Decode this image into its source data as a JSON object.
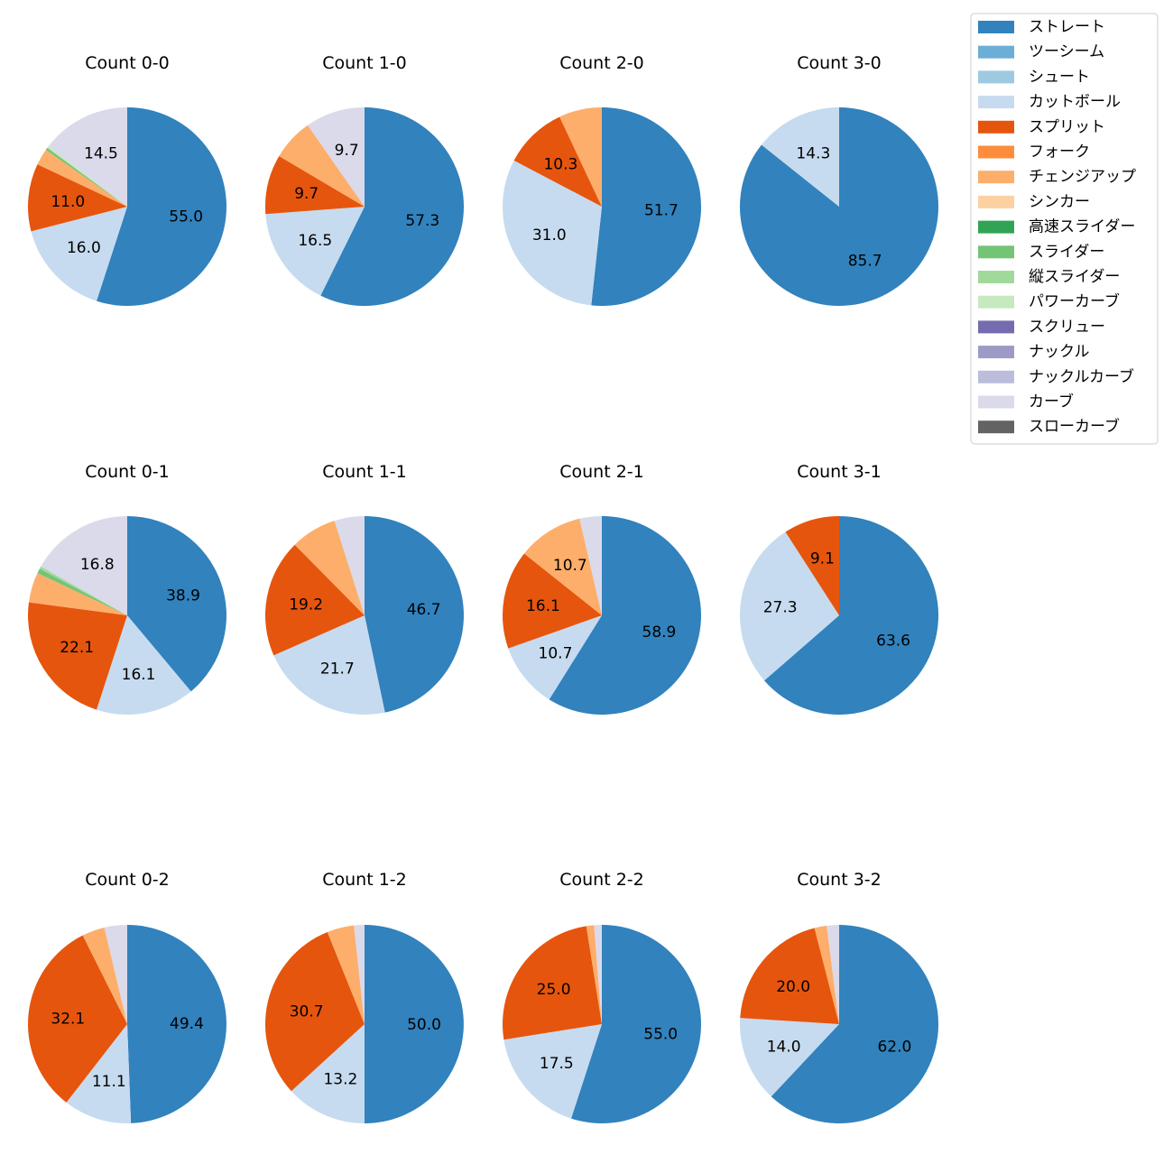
{
  "colors": {
    "ストレート": "#3182bd",
    "ツーシーム": "#6baed6",
    "シュート": "#9ecae1",
    "カットボール": "#c6dbef",
    "スプリット": "#e6550d",
    "フォーク": "#fd8d3c",
    "チェンジアップ": "#fdae6b",
    "シンカー": "#fdd0a2",
    "高速スライダー": "#31a354",
    "スライダー": "#74c476",
    "縦スライダー": "#a1d99b",
    "パワーカーブ": "#c7e9c0",
    "スクリュー": "#756bb1",
    "ナックル": "#9e9ac8",
    "ナックルカーブ": "#bcbddc",
    "カーブ": "#dadaeb",
    "スローカーブ": "#636363"
  },
  "legend": [
    "ストレート",
    "ツーシーム",
    "シュート",
    "カットボール",
    "スプリット",
    "フォーク",
    "チェンジアップ",
    "シンカー",
    "高速スライダー",
    "スライダー",
    "縦スライダー",
    "パワーカーブ",
    "スクリュー",
    "ナックル",
    "ナックルカーブ",
    "カーブ",
    "スローカーブ"
  ],
  "chart_data": [
    {
      "type": "pie",
      "title": "Count 0-0",
      "slices": [
        {
          "label": "ストレート",
          "value": 55.0,
          "shown": "55.0"
        },
        {
          "label": "カットボール",
          "value": 16.0,
          "shown": "16.0"
        },
        {
          "label": "スプリット",
          "value": 11.0,
          "shown": "11.0"
        },
        {
          "label": "チェンジアップ",
          "value": 2.7,
          "shown": ""
        },
        {
          "label": "スライダー",
          "value": 0.4,
          "shown": ""
        },
        {
          "label": "パワーカーブ",
          "value": 0.4,
          "shown": ""
        },
        {
          "label": "カーブ",
          "value": 14.5,
          "shown": "14.5"
        }
      ]
    },
    {
      "type": "pie",
      "title": "Count 1-0",
      "slices": [
        {
          "label": "ストレート",
          "value": 57.3,
          "shown": "57.3"
        },
        {
          "label": "カットボール",
          "value": 16.5,
          "shown": "16.5"
        },
        {
          "label": "スプリット",
          "value": 9.7,
          "shown": "9.7"
        },
        {
          "label": "チェンジアップ",
          "value": 6.8,
          "shown": ""
        },
        {
          "label": "カーブ",
          "value": 9.7,
          "shown": "9.7"
        }
      ]
    },
    {
      "type": "pie",
      "title": "Count 2-0",
      "slices": [
        {
          "label": "ストレート",
          "value": 51.7,
          "shown": "51.7"
        },
        {
          "label": "カットボール",
          "value": 31.0,
          "shown": "31.0"
        },
        {
          "label": "スプリット",
          "value": 10.3,
          "shown": "10.3"
        },
        {
          "label": "チェンジアップ",
          "value": 7.0,
          "shown": ""
        }
      ]
    },
    {
      "type": "pie",
      "title": "Count 3-0",
      "slices": [
        {
          "label": "ストレート",
          "value": 85.7,
          "shown": "85.7"
        },
        {
          "label": "カットボール",
          "value": 14.3,
          "shown": "14.3"
        }
      ]
    },
    {
      "type": "pie",
      "title": "Count 0-1",
      "slices": [
        {
          "label": "ストレート",
          "value": 38.9,
          "shown": "38.9"
        },
        {
          "label": "カットボール",
          "value": 16.1,
          "shown": "16.1"
        },
        {
          "label": "スプリット",
          "value": 22.1,
          "shown": "22.1"
        },
        {
          "label": "チェンジアップ",
          "value": 4.9,
          "shown": ""
        },
        {
          "label": "スライダー",
          "value": 0.8,
          "shown": ""
        },
        {
          "label": "縦スライダー",
          "value": 0.4,
          "shown": ""
        },
        {
          "label": "カーブ",
          "value": 16.8,
          "shown": "16.8"
        }
      ]
    },
    {
      "type": "pie",
      "title": "Count 1-1",
      "slices": [
        {
          "label": "ストレート",
          "value": 46.7,
          "shown": "46.7"
        },
        {
          "label": "カットボール",
          "value": 21.7,
          "shown": "21.7"
        },
        {
          "label": "スプリット",
          "value": 19.2,
          "shown": "19.2"
        },
        {
          "label": "チェンジアップ",
          "value": 7.5,
          "shown": ""
        },
        {
          "label": "カーブ",
          "value": 4.9,
          "shown": ""
        }
      ]
    },
    {
      "type": "pie",
      "title": "Count 2-1",
      "slices": [
        {
          "label": "ストレート",
          "value": 58.9,
          "shown": "58.9"
        },
        {
          "label": "カットボール",
          "value": 10.7,
          "shown": "10.7"
        },
        {
          "label": "スプリット",
          "value": 16.1,
          "shown": "16.1"
        },
        {
          "label": "チェンジアップ",
          "value": 10.7,
          "shown": "10.7"
        },
        {
          "label": "カーブ",
          "value": 3.6,
          "shown": ""
        }
      ]
    },
    {
      "type": "pie",
      "title": "Count 3-1",
      "slices": [
        {
          "label": "ストレート",
          "value": 63.6,
          "shown": "63.6"
        },
        {
          "label": "カットボール",
          "value": 27.3,
          "shown": "27.3"
        },
        {
          "label": "スプリット",
          "value": 9.1,
          "shown": "9.1"
        }
      ]
    },
    {
      "type": "pie",
      "title": "Count 0-2",
      "slices": [
        {
          "label": "ストレート",
          "value": 49.4,
          "shown": "49.4"
        },
        {
          "label": "カットボール",
          "value": 11.1,
          "shown": "11.1"
        },
        {
          "label": "スプリット",
          "value": 32.1,
          "shown": "32.1"
        },
        {
          "label": "チェンジアップ",
          "value": 3.7,
          "shown": ""
        },
        {
          "label": "カーブ",
          "value": 3.7,
          "shown": ""
        }
      ]
    },
    {
      "type": "pie",
      "title": "Count 1-2",
      "slices": [
        {
          "label": "ストレート",
          "value": 50.0,
          "shown": "50.0"
        },
        {
          "label": "カットボール",
          "value": 13.2,
          "shown": "13.2"
        },
        {
          "label": "スプリット",
          "value": 30.7,
          "shown": "30.7"
        },
        {
          "label": "チェンジアップ",
          "value": 4.4,
          "shown": ""
        },
        {
          "label": "カーブ",
          "value": 1.7,
          "shown": ""
        }
      ]
    },
    {
      "type": "pie",
      "title": "Count 2-2",
      "slices": [
        {
          "label": "ストレート",
          "value": 55.0,
          "shown": "55.0"
        },
        {
          "label": "カットボール",
          "value": 17.5,
          "shown": "17.5"
        },
        {
          "label": "スプリット",
          "value": 25.0,
          "shown": "25.0"
        },
        {
          "label": "チェンジアップ",
          "value": 1.25,
          "shown": ""
        },
        {
          "label": "カーブ",
          "value": 1.25,
          "shown": ""
        }
      ]
    },
    {
      "type": "pie",
      "title": "Count 3-2",
      "slices": [
        {
          "label": "ストレート",
          "value": 62.0,
          "shown": "62.0"
        },
        {
          "label": "カットボール",
          "value": 14.0,
          "shown": "14.0"
        },
        {
          "label": "スプリット",
          "value": 20.0,
          "shown": "20.0"
        },
        {
          "label": "チェンジアップ",
          "value": 2.0,
          "shown": ""
        },
        {
          "label": "カーブ",
          "value": 2.0,
          "shown": ""
        }
      ]
    }
  ]
}
